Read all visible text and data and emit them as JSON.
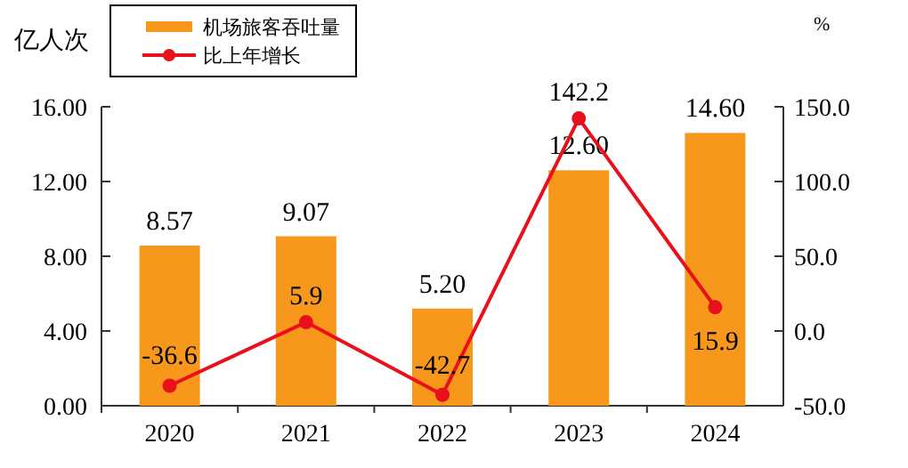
{
  "chart_data": {
    "type": "bar",
    "categories": [
      "2020",
      "2021",
      "2022",
      "2023",
      "2024"
    ],
    "ylabel": "亿人次",
    "y2label": "%",
    "legend": "top left",
    "marker": "circle",
    "series": [
      {
        "name": "机场旅客吞吐量",
        "color": "#f7981d",
        "values": [
          8.57,
          9.07,
          5.2,
          12.6,
          14.6
        ],
        "value_labels": [
          "8.57",
          "9.07",
          "5.20",
          "12.60",
          "14.60"
        ]
      },
      {
        "name": "比上年增长",
        "type": "line",
        "axis": "y2",
        "color": "#e8111b",
        "values": [
          -36.6,
          5.9,
          -42.7,
          142.2,
          15.9
        ],
        "value_labels": [
          "-36.6",
          "5.9",
          "-42.7",
          "142.2",
          "15.9"
        ]
      }
    ],
    "ylim": [
      0,
      16
    ],
    "yticks": [
      {
        "value": 0,
        "label": "0.00"
      },
      {
        "value": 4,
        "label": "4.00"
      },
      {
        "value": 8,
        "label": "8.00"
      },
      {
        "value": 12,
        "label": "12.00"
      },
      {
        "value": 16,
        "label": "16.00"
      }
    ],
    "y2lim": [
      -50,
      150
    ],
    "y2ticks": [
      {
        "value": -50,
        "label": "-50.0"
      },
      {
        "value": 0,
        "label": "0.0"
      },
      {
        "value": 50,
        "label": "50.0"
      },
      {
        "value": 100,
        "label": "100.0"
      },
      {
        "value": 150,
        "label": "150.0"
      }
    ]
  }
}
